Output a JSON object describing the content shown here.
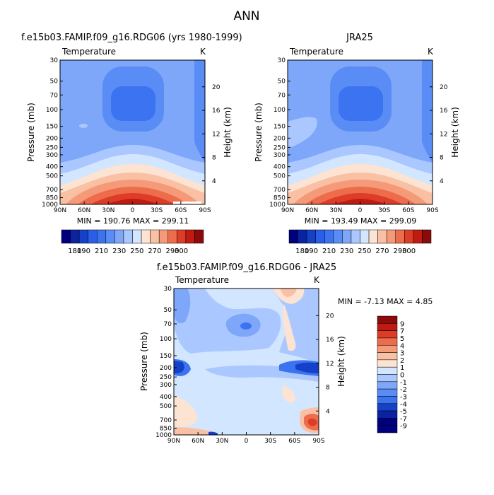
{
  "figure": {
    "title": "ANN"
  },
  "chart_data": [
    {
      "type": "heatmap",
      "title": "f.e15b03.FAMIP.f09_g16.RDG06 (yrs 1980-1999)",
      "left_label": "Temperature",
      "right_label": "K",
      "ylabel": "Pressure (mb)",
      "ylabel_right": "Height (km)",
      "x_ticks": [
        "90N",
        "60N",
        "30N",
        "0",
        "30S",
        "60S",
        "90S"
      ],
      "y_ticks": [
        "30",
        "50",
        "70",
        "100",
        "150",
        "200",
        "250",
        "300",
        "400",
        "500",
        "700",
        "850",
        "1000"
      ],
      "y_ticks_right": [
        "4",
        "8",
        "12",
        "16",
        "20"
      ],
      "stats": "MIN = 190.76   MAX = 299.11",
      "colorbar_levels": [
        "180",
        "190",
        "200",
        "210",
        "220",
        "230",
        "240",
        "250",
        "260",
        "270",
        "280",
        "290",
        "300"
      ],
      "colorbar_labels": [
        "180",
        "190",
        "210",
        "230",
        "250",
        "270",
        "290",
        "300"
      ]
    },
    {
      "type": "heatmap",
      "title": "JRA25",
      "left_label": "Temperature",
      "right_label": "K",
      "ylabel": "Pressure (mb)",
      "ylabel_right": "Height (km)",
      "x_ticks": [
        "90N",
        "60N",
        "30N",
        "0",
        "30S",
        "60S",
        "90S"
      ],
      "y_ticks": [
        "30",
        "50",
        "70",
        "100",
        "150",
        "200",
        "250",
        "300",
        "400",
        "500",
        "700",
        "850",
        "1000"
      ],
      "y_ticks_right": [
        "4",
        "8",
        "12",
        "16",
        "20"
      ],
      "stats": "MIN = 193.49   MAX = 299.09",
      "colorbar_levels": [
        "180",
        "190",
        "200",
        "210",
        "220",
        "230",
        "240",
        "250",
        "260",
        "270",
        "280",
        "290",
        "300"
      ],
      "colorbar_labels": [
        "180",
        "190",
        "210",
        "230",
        "250",
        "270",
        "290",
        "300"
      ]
    },
    {
      "type": "heatmap",
      "title": "f.e15b03.FAMIP.f09_g16.RDG06 - JRA25",
      "left_label": "Temperature",
      "right_label": "K",
      "ylabel": "Pressure (mb)",
      "ylabel_right": "Height (km)",
      "x_ticks": [
        "90N",
        "60N",
        "30N",
        "0",
        "30S",
        "60S",
        "90S"
      ],
      "y_ticks": [
        "30",
        "50",
        "70",
        "100",
        "150",
        "200",
        "250",
        "300",
        "400",
        "500",
        "700",
        "850",
        "1000"
      ],
      "y_ticks_right": [
        "4",
        "8",
        "12",
        "16",
        "20"
      ],
      "stats": "MIN =   -7.13   MAX =    4.85",
      "colorbar_levels": [
        "9",
        "7",
        "5",
        "4",
        "3",
        "2",
        "1",
        "0",
        "-1",
        "-2",
        "-3",
        "-4",
        "-5",
        "-7",
        "-9"
      ]
    }
  ],
  "colors": {
    "warm_scale": [
      "#00007f",
      "#0a23a0",
      "#1441c8",
      "#2b5ee6",
      "#3c73f0",
      "#5a8cf5",
      "#7ea7fa",
      "#aac8ff",
      "#d2e6ff",
      "#fde3d2",
      "#f9c0a4",
      "#f49a78",
      "#ec6c4c",
      "#dd3d27",
      "#bf1b12",
      "#8c0a0a"
    ],
    "diff_scale": [
      "#8c0a0a",
      "#bf1b12",
      "#dd3d27",
      "#ec6c4c",
      "#f49a78",
      "#f9c0a4",
      "#fde3d2",
      "#d2e6ff",
      "#aac8ff",
      "#7ea7fa",
      "#5a8cf5",
      "#3c73f0",
      "#1441c8",
      "#0a23a0",
      "#00007f"
    ]
  }
}
